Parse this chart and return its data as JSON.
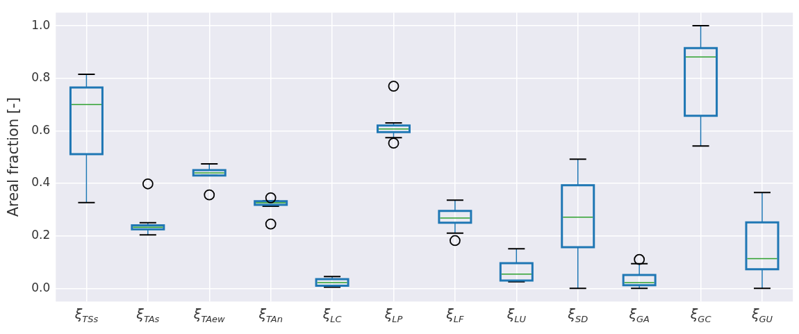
{
  "chart_data": {
    "type": "box",
    "ylabel": "Areal fraction [-]",
    "categories": [
      "ξ$_{TSs}$",
      "ξ$_{TAs}$",
      "ξ$_{TAew}$",
      "ξ$_{TAn}$",
      "ξ$_{LC}$",
      "ξ$_{LP}$",
      "ξ$_{LF}$",
      "ξ$_{LU}$",
      "ξ$_{SD}$",
      "ξ$_{GA}$",
      "ξ$_{GC}$",
      "ξ$_{GU}$"
    ],
    "series": [
      {
        "color": "#1f77b4",
        "boxes": [
          {
            "low": 0.327,
            "q1": 0.511,
            "median": 0.7,
            "q3": 0.765,
            "high": 0.815
          },
          {
            "low": 0.204,
            "q1": 0.225,
            "median": 0.233,
            "q3": 0.24,
            "high": 0.25,
            "outliers": [
              0.398
            ]
          },
          {
            "low": 0.43,
            "q1": 0.43,
            "median": 0.44,
            "q3": 0.45,
            "high": 0.474,
            "outliers": [
              0.356
            ]
          },
          {
            "low": 0.313,
            "q1": 0.318,
            "median": 0.326,
            "q3": 0.332,
            "high": 0.333,
            "outliers": [
              0.345,
              0.245
            ]
          },
          {
            "low": 0.005,
            "q1": 0.01,
            "median": 0.022,
            "q3": 0.035,
            "high": 0.045
          },
          {
            "low": 0.574,
            "q1": 0.595,
            "median": 0.607,
            "q3": 0.62,
            "high": 0.63,
            "outliers": [
              0.77,
              0.553
            ]
          },
          {
            "low": 0.21,
            "q1": 0.25,
            "median": 0.268,
            "q3": 0.295,
            "high": 0.336,
            "outliers": [
              0.182
            ]
          },
          {
            "low": 0.025,
            "q1": 0.03,
            "median": 0.054,
            "q3": 0.096,
            "high": 0.151
          },
          {
            "low": 0.0,
            "q1": 0.157,
            "median": 0.271,
            "q3": 0.393,
            "high": 0.492
          },
          {
            "low": 0.0,
            "q1": 0.012,
            "median": 0.022,
            "q3": 0.051,
            "high": 0.094,
            "outliers": [
              0.11
            ]
          },
          {
            "low": 0.542,
            "q1": 0.657,
            "median": 0.881,
            "q3": 0.915,
            "high": 1.0
          },
          {
            "low": 0.0,
            "q1": 0.073,
            "median": 0.113,
            "q3": 0.251,
            "high": 0.365
          }
        ]
      }
    ],
    "ylim": [
      -0.05,
      1.05
    ],
    "yticks": [
      {
        "value": 0,
        "label": "0.0"
      },
      0.2,
      0.4,
      0.6,
      0.8,
      {
        "value": 1,
        "label": "1.0"
      }
    ],
    "grid": true,
    "marker": "circle"
  }
}
